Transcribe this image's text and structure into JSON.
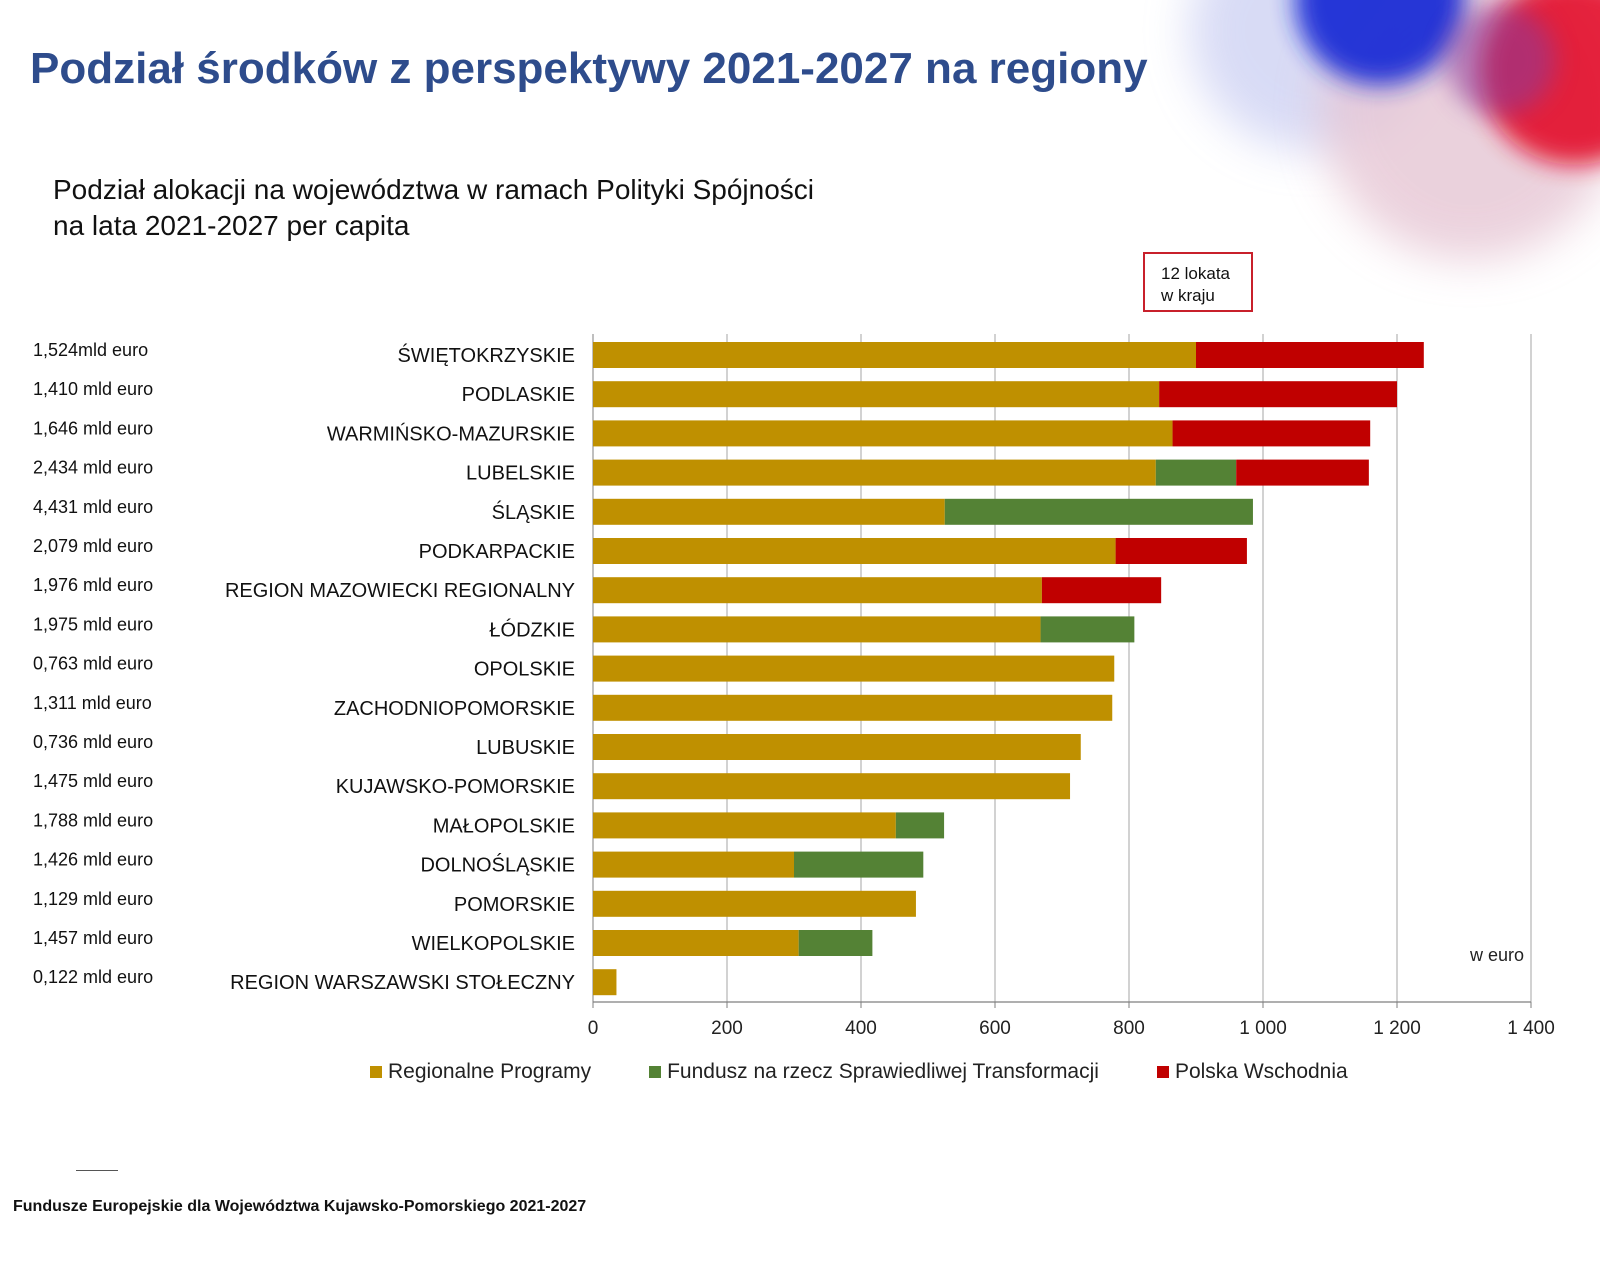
{
  "slide": {
    "title": "Podział środków z perspektywy 2021-2027 na regiony",
    "footer": "Fundusze Europejskie dla Województwa Kujawsko-Pomorskiego 2021-2027"
  },
  "colors": {
    "title": "#2e4c8c",
    "regional": "#bf9000",
    "transition": "#548235",
    "east": "#c00000",
    "callout_border": "#c8202b"
  },
  "callout": {
    "line1": "12 lokata",
    "line2": "w kraju"
  },
  "chart_data": {
    "type": "bar",
    "orientation": "horizontal",
    "stacked": true,
    "title_line1": "Podział alokacji na województwa w ramach Polityki Spójności",
    "title_line2": "na lata 2021-2027 per capita",
    "unit_label": "w euro",
    "categories": [
      "ŚWIĘTOKRZYSKIE",
      "PODLASKIE",
      "WARMIŃSKO-MAZURSKIE",
      "LUBELSKIE",
      "ŚLĄSKIE",
      "PODKARPACKIE",
      "REGION MAZOWIECKI REGIONALNY",
      "ŁÓDZKIE",
      "OPOLSKIE",
      "ZACHODNIOPOMORSKIE",
      "LUBUSKIE",
      "KUJAWSKO-POMORSKIE",
      "MAŁOPOLSKIE",
      "DOLNOŚLĄSKIE",
      "POMORSKIE",
      "WIELKOPOLSKIE",
      "REGION WARSZAWSKI STOŁECZNY"
    ],
    "totals": [
      "1,524mld euro",
      "1,410 mld euro",
      "1,646 mld euro",
      "2,434 mld euro",
      "4,431 mld euro",
      "2,079 mld euro",
      "1,976 mld euro",
      "1,975 mld euro",
      "0,763 mld euro",
      "1,311 mld euro",
      "0,736 mld euro",
      "1,475 mld euro",
      "1,788 mld euro",
      "1,426 mld euro",
      "1,129 mld euro",
      "1,457 mld euro",
      "0,122 mld euro"
    ],
    "series": [
      {
        "name": "Regionalne Programy",
        "color": "#bf9000",
        "values": [
          900,
          845,
          865,
          840,
          525,
          780,
          670,
          668,
          778,
          775,
          728,
          712,
          452,
          300,
          482,
          307,
          35
        ]
      },
      {
        "name": "Fundusz na rzecz Sprawiedliwej Transformacji",
        "color": "#548235",
        "values": [
          0,
          0,
          0,
          120,
          460,
          0,
          0,
          140,
          0,
          0,
          0,
          0,
          72,
          193,
          0,
          110,
          0
        ]
      },
      {
        "name": "Polska Wschodnia",
        "color": "#c00000",
        "values": [
          340,
          355,
          295,
          198,
          0,
          196,
          178,
          0,
          0,
          0,
          0,
          0,
          0,
          0,
          0,
          0,
          0
        ]
      }
    ],
    "xlim": [
      0,
      1400
    ],
    "xticks": [
      0,
      200,
      400,
      600,
      800,
      1000,
      1200,
      1400
    ],
    "xtick_labels": [
      "0",
      "200",
      "400",
      "600",
      "800",
      "1 000",
      "1 200",
      "1 400"
    ],
    "grid": "vertical",
    "legend": "bottom"
  }
}
